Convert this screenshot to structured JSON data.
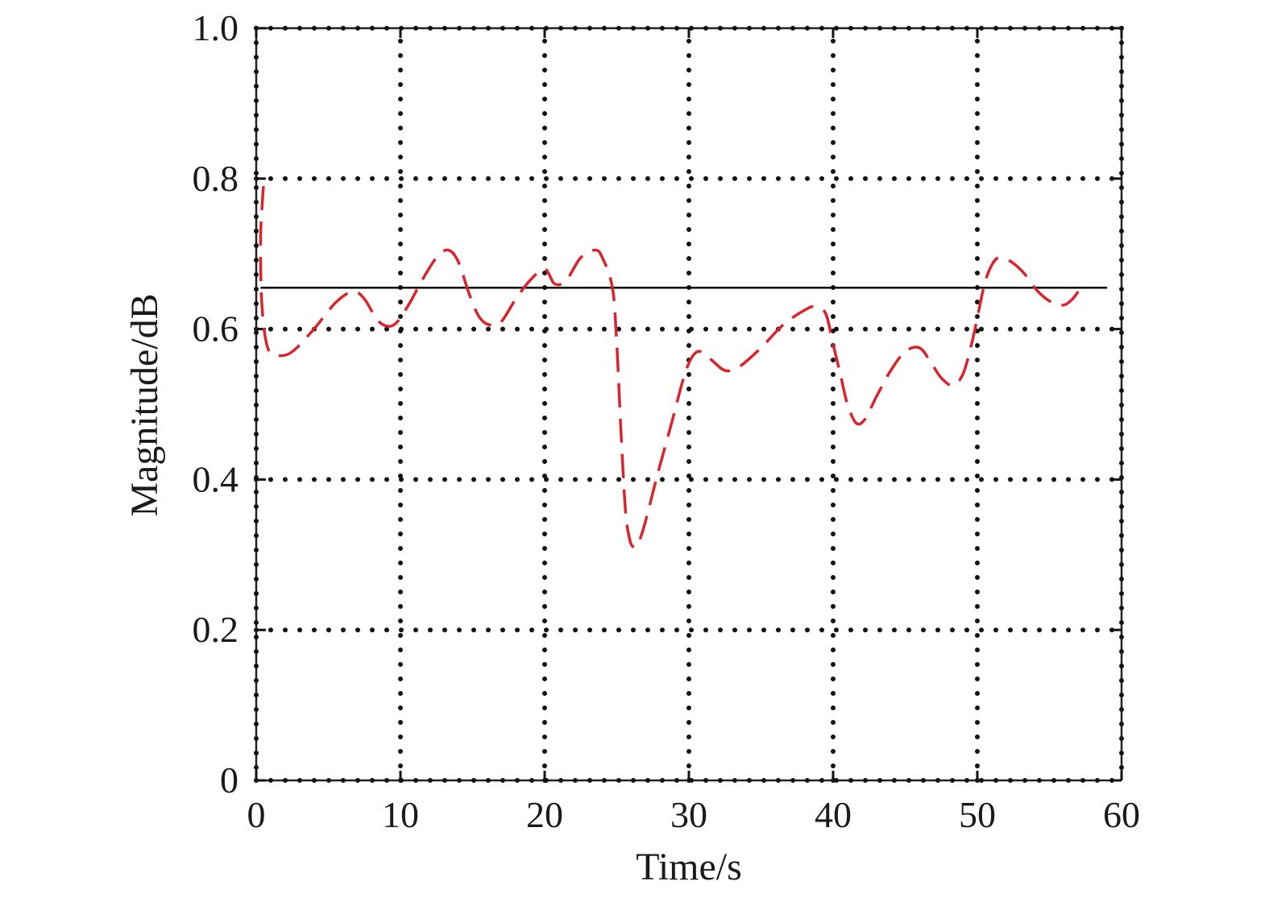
{
  "chart_data": {
    "type": "line",
    "title": "",
    "xlabel": "Time/s",
    "ylabel": "Magnitude/dB",
    "xlim": [
      0,
      60
    ],
    "ylim": [
      0,
      1.0
    ],
    "x_ticks": [
      0,
      10,
      20,
      30,
      40,
      50,
      60
    ],
    "x_tick_labels": [
      "0",
      "10",
      "20",
      "30",
      "40",
      "50",
      "60"
    ],
    "y_ticks": [
      0,
      0.2,
      0.4,
      0.6,
      0.8,
      1.0
    ],
    "y_tick_labels": [
      "0",
      "0.2",
      "0.4",
      "0.6",
      "0.8",
      "1.0"
    ],
    "grid": true,
    "grid_style": "dotted",
    "legend": "none",
    "series": [
      {
        "style": "solid",
        "color": "#000000",
        "x": [
          0.3,
          59.0
        ],
        "y": [
          0.655,
          0.655
        ]
      },
      {
        "style": "dashed",
        "color": "#d9242b",
        "x": [
          0.5,
          0.3,
          0.4,
          0.8,
          1.5,
          2.5,
          4.0,
          5.5,
          6.7,
          7.5,
          8.5,
          9.5,
          10.5,
          11.5,
          12.5,
          13.3,
          14.0,
          14.8,
          15.5,
          16.3,
          17.0,
          18.0,
          19.0,
          20.0,
          20.7,
          21.5,
          22.5,
          23.5,
          24.0,
          24.7,
          25.0,
          25.3,
          25.6,
          25.9,
          26.2,
          26.5,
          27.0,
          27.8,
          28.8,
          29.8,
          30.6,
          31.5,
          32.5,
          33.5,
          35.0,
          36.5,
          38.0,
          38.8,
          39.5,
          40.0,
          40.5,
          41.0,
          41.6,
          42.2,
          43.0,
          44.0,
          45.0,
          46.0,
          46.8,
          47.5,
          48.3,
          49.0,
          49.6,
          50.0,
          50.5,
          51.0,
          51.5,
          52.3,
          53.2,
          54.2,
          55.2,
          56.0,
          56.6,
          57.0
        ],
        "y": [
          0.79,
          0.72,
          0.63,
          0.575,
          0.565,
          0.57,
          0.6,
          0.635,
          0.65,
          0.64,
          0.61,
          0.605,
          0.63,
          0.665,
          0.695,
          0.705,
          0.69,
          0.645,
          0.615,
          0.605,
          0.61,
          0.64,
          0.665,
          0.68,
          0.66,
          0.665,
          0.695,
          0.705,
          0.695,
          0.655,
          0.58,
          0.46,
          0.36,
          0.32,
          0.31,
          0.315,
          0.345,
          0.405,
          0.475,
          0.545,
          0.57,
          0.56,
          0.545,
          0.55,
          0.575,
          0.605,
          0.625,
          0.63,
          0.62,
          0.58,
          0.54,
          0.5,
          0.475,
          0.48,
          0.51,
          0.545,
          0.57,
          0.575,
          0.555,
          0.535,
          0.525,
          0.54,
          0.58,
          0.615,
          0.66,
          0.685,
          0.695,
          0.69,
          0.675,
          0.65,
          0.635,
          0.632,
          0.64,
          0.65
        ]
      }
    ]
  }
}
